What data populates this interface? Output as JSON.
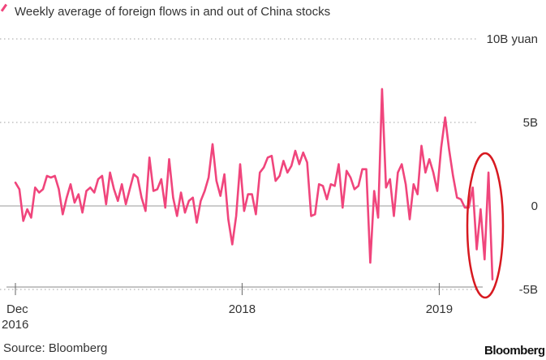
{
  "chart_data": {
    "type": "line",
    "title": "Weekly average of foreign flows in and out of China stocks",
    "unit": "yuan",
    "ylim": [
      -5,
      10
    ],
    "yticks": [
      {
        "value": 10,
        "label": "10B yuan"
      },
      {
        "value": 5,
        "label": "5B"
      },
      {
        "value": 0,
        "label": "0"
      },
      {
        "value": -5,
        "label": "-5B"
      }
    ],
    "xticks": [
      {
        "week": 0,
        "label": "Dec",
        "sublabel": "2016"
      },
      {
        "week": 57.5,
        "label": "2018",
        "sublabel": ""
      },
      {
        "week": 107.5,
        "label": "2019",
        "sublabel": ""
      }
    ],
    "annotation": "recent outflows circled",
    "series": [
      {
        "name": "Weekly average of foreign flows in and out of China stocks",
        "color": "#f0457c",
        "values": [
          1.4,
          1.0,
          -0.9,
          -0.2,
          -0.7,
          1.1,
          0.8,
          1.0,
          1.8,
          1.7,
          1.8,
          1.0,
          -0.5,
          0.5,
          1.3,
          0.2,
          0.7,
          -0.4,
          0.9,
          1.1,
          0.8,
          1.6,
          1.8,
          0.1,
          2.0,
          1.0,
          0.3,
          1.3,
          0.1,
          1.0,
          1.9,
          1.7,
          0.5,
          -0.3,
          2.9,
          0.9,
          1.0,
          1.6,
          -0.1,
          2.8,
          0.5,
          -0.6,
          0.8,
          -0.4,
          0.3,
          0.5,
          -1.0,
          0.3,
          0.9,
          1.7,
          3.7,
          1.5,
          0.6,
          1.9,
          -0.8,
          -2.3,
          -0.6,
          2.5,
          -0.3,
          0.7,
          0.7,
          -0.5,
          2.0,
          2.3,
          2.9,
          3.0,
          1.5,
          1.8,
          2.7,
          2.0,
          2.4,
          3.3,
          2.5,
          3.2,
          2.6,
          -0.6,
          -0.5,
          1.3,
          1.2,
          0.4,
          1.3,
          1.2,
          2.5,
          -0.1,
          2.1,
          1.7,
          1.0,
          1.2,
          2.2,
          2.2,
          -3.4,
          0.9,
          -0.7,
          7.0,
          1.1,
          1.6,
          -0.6,
          2.0,
          2.5,
          1.3,
          -0.8,
          1.3,
          0.7,
          3.6,
          2.0,
          2.8,
          2.0,
          0.9,
          3.5,
          5.3,
          3.4,
          1.8,
          0.5,
          0.4,
          -0.1,
          -0.1,
          1.1,
          -2.6,
          -0.2,
          -3.2,
          2.0,
          -4.4
        ]
      }
    ]
  },
  "legend": {
    "label": "Weekly average of foreign flows in and out of China stocks"
  },
  "footer": {
    "source": "Source: Bloomberg",
    "brand": "Bloomberg"
  }
}
